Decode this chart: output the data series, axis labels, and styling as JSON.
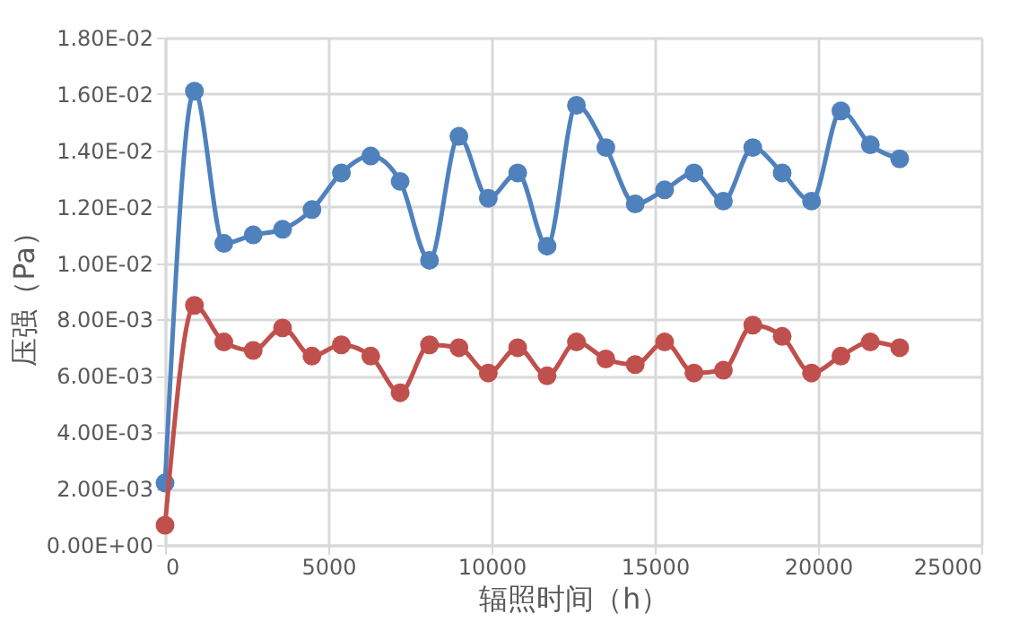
{
  "chart_data": {
    "type": "line",
    "xlabel": "辐照时间（h）",
    "ylabel": "压强（Pa）",
    "x": [
      0,
      900,
      1800,
      2700,
      3600,
      4500,
      5400,
      6300,
      7200,
      8100,
      9000,
      9900,
      10800,
      11700,
      12600,
      13500,
      14400,
      15300,
      16200,
      17100,
      18000,
      18900,
      19800,
      20700,
      21600,
      22500
    ],
    "series": [
      {
        "color": "#4f81bd",
        "values": [
          0.0022,
          0.0161,
          0.0107,
          0.011,
          0.0112,
          0.0119,
          0.0132,
          0.0138,
          0.0129,
          0.0101,
          0.0145,
          0.0123,
          0.0132,
          0.0106,
          0.0156,
          0.0141,
          0.0121,
          0.0126,
          0.0132,
          0.0122,
          0.0141,
          0.0132,
          0.0122,
          0.0154,
          0.0142,
          0.0137
        ]
      },
      {
        "color": "#c0504d",
        "values": [
          0.0007,
          0.0085,
          0.0072,
          0.0069,
          0.0077,
          0.0067,
          0.0071,
          0.0067,
          0.0054,
          0.0071,
          0.007,
          0.0061,
          0.007,
          0.006,
          0.0072,
          0.0066,
          0.0064,
          0.0072,
          0.0061,
          0.0062,
          0.0078,
          0.0074,
          0.0061,
          0.0067,
          0.0072,
          0.007
        ]
      }
    ],
    "xlim": [
      0,
      25000
    ],
    "xticks": [
      0,
      5000,
      10000,
      15000,
      20000,
      25000
    ],
    "ylim": [
      0,
      0.018
    ],
    "yticks": [
      {
        "value": 0,
        "label": "0.00E+00"
      },
      {
        "value": 0.002,
        "label": "2.00E-03"
      },
      {
        "value": 0.004,
        "label": "4.00E-03"
      },
      {
        "value": 0.006,
        "label": "6.00E-03"
      },
      {
        "value": 0.008,
        "label": "8.00E-03"
      },
      {
        "value": 0.01,
        "label": "1.00E-02"
      },
      {
        "value": 0.012,
        "label": "1.20E-02"
      },
      {
        "value": 0.014,
        "label": "1.40E-02"
      },
      {
        "value": 0.016,
        "label": "1.60E-02"
      },
      {
        "value": 0.018,
        "label": "1.80E-02"
      }
    ],
    "grid": true,
    "marker": "circle",
    "line_style": "solid",
    "legend": false
  }
}
